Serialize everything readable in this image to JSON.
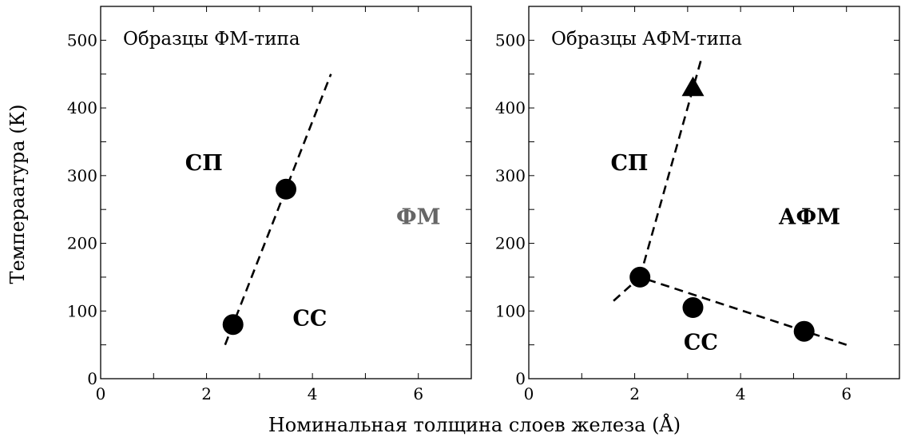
{
  "chart_data": {
    "type": "scatter",
    "ylabel": "Темпераатура (К)",
    "xlabel": "Номинальная толщина слоев железа (Å)",
    "panels": [
      {
        "title": "Образцы ФМ-типа",
        "xlim": [
          0,
          7
        ],
        "ylim": [
          0,
          550
        ],
        "xticks": [
          0,
          2,
          4,
          6
        ],
        "yticks": [
          0,
          100,
          200,
          300,
          400,
          500
        ],
        "series": [
          {
            "marker": "circle",
            "points": [
              {
                "x": 2.5,
                "y": 80
              },
              {
                "x": 3.5,
                "y": 280
              }
            ]
          }
        ],
        "lines": [
          {
            "style": "dashed",
            "points": [
              {
                "x": 2.35,
                "y": 50
              },
              {
                "x": 4.35,
                "y": 450
              }
            ]
          }
        ],
        "regions": [
          {
            "text": "СП",
            "x": 1.95,
            "y": 320,
            "color": "#000000"
          },
          {
            "text": "ФМ",
            "x": 6.0,
            "y": 240,
            "color": "#666666"
          },
          {
            "text": "СС",
            "x": 3.95,
            "y": 90,
            "color": "#000000"
          }
        ]
      },
      {
        "title": "Образцы АФМ-типа",
        "xlim": [
          0,
          7
        ],
        "ylim": [
          0,
          550
        ],
        "xticks": [
          0,
          2,
          4,
          6
        ],
        "yticks": [
          0,
          100,
          200,
          300,
          400,
          500
        ],
        "series": [
          {
            "marker": "circle",
            "points": [
              {
                "x": 2.1,
                "y": 150
              },
              {
                "x": 3.1,
                "y": 105
              },
              {
                "x": 5.2,
                "y": 70
              }
            ]
          },
          {
            "marker": "triangle",
            "points": [
              {
                "x": 3.1,
                "y": 430
              }
            ]
          }
        ],
        "lines": [
          {
            "style": "dashed",
            "points": [
              {
                "x": 2.1,
                "y": 150
              },
              {
                "x": 3.25,
                "y": 470
              }
            ]
          },
          {
            "style": "dashed",
            "points": [
              {
                "x": 1.6,
                "y": 115
              },
              {
                "x": 2.1,
                "y": 150
              },
              {
                "x": 6.0,
                "y": 50
              }
            ]
          }
        ],
        "regions": [
          {
            "text": "СП",
            "x": 1.9,
            "y": 320,
            "color": "#000000"
          },
          {
            "text": "АФМ",
            "x": 5.3,
            "y": 240,
            "color": "#000000"
          },
          {
            "text": "СС",
            "x": 3.25,
            "y": 55,
            "color": "#000000"
          }
        ]
      }
    ]
  }
}
